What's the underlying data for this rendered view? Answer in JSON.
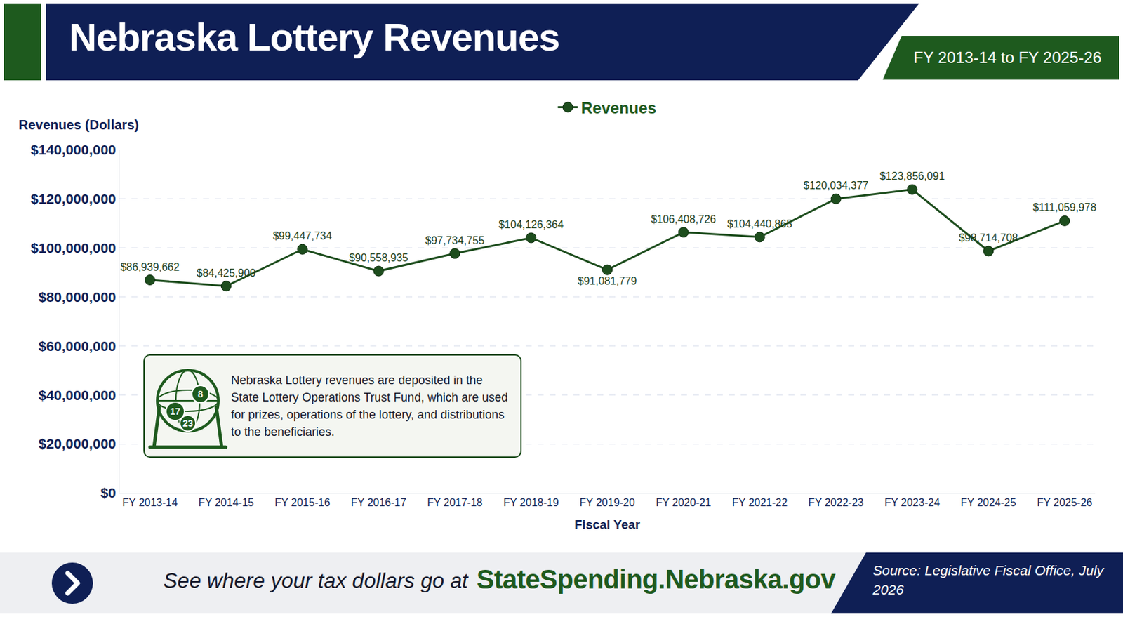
{
  "chart_data": {
    "type": "line",
    "title": "Nebraska Lottery Revenues",
    "subtitle": "FY 2013-14 to FY 2025-26",
    "x_label": "Fiscal Year",
    "y_label": "Revenues (Dollars)",
    "categories": [
      "FY 2013-14",
      "FY 2014-15",
      "FY 2015-16",
      "FY 2016-17",
      "FY 2017-18",
      "FY 2018-19",
      "FY 2019-20",
      "FY 2020-21",
      "FY 2021-22",
      "FY 2022-23",
      "FY 2023-24",
      "FY 2024-25",
      "FY 2025-26"
    ],
    "series": [
      {
        "name": "Revenues",
        "color": "#1d4d1d",
        "values": [
          86939662,
          84425900,
          99447734,
          90558935,
          97734755,
          104126364,
          91081779,
          106408726,
          104440865,
          120034377,
          123856091,
          98714708,
          111059978
        ],
        "value_labels": [
          "$86,939,662",
          "$84,425,900",
          "$99,447,734",
          "$90,558,935",
          "$97,734,755",
          "$104,126,364",
          "$91,081,779",
          "$106,408,726",
          "$104,440,865",
          "$120,034,377",
          "$123,856,091",
          "$98,714,708",
          "$111,059,978"
        ]
      }
    ],
    "ylim": [
      0,
      140000000
    ],
    "yticks": [
      {
        "value": 0,
        "label": "$0"
      },
      {
        "value": 20000000,
        "label": "$20,000,000"
      },
      {
        "value": 40000000,
        "label": "$40,000,000"
      },
      {
        "value": 60000000,
        "label": "$60,000,000"
      },
      {
        "value": 80000000,
        "label": "$80,000,000"
      },
      {
        "value": 100000000,
        "label": "$100,000,000"
      },
      {
        "value": 120000000,
        "label": "$120,000,000"
      },
      {
        "value": 140000000,
        "label": "$140,000,000"
      }
    ],
    "grid": true,
    "legend": "top",
    "data_labels": true,
    "marker": "circle",
    "line_style": "solid",
    "annotations": [
      "Nebraska Lottery revenues are deposited in the State Lottery Operations Trust Fund, which are used for prizes, operations of the lottery, and distributions to the beneficiaries."
    ]
  },
  "icon_labels": [
    "17",
    "8",
    "23"
  ],
  "footer": {
    "prompt": "See where your tax dollars go at",
    "link": "StateSpending.Nebraska.gov",
    "source": "Source: Legislative Fiscal Office, July 2026"
  }
}
